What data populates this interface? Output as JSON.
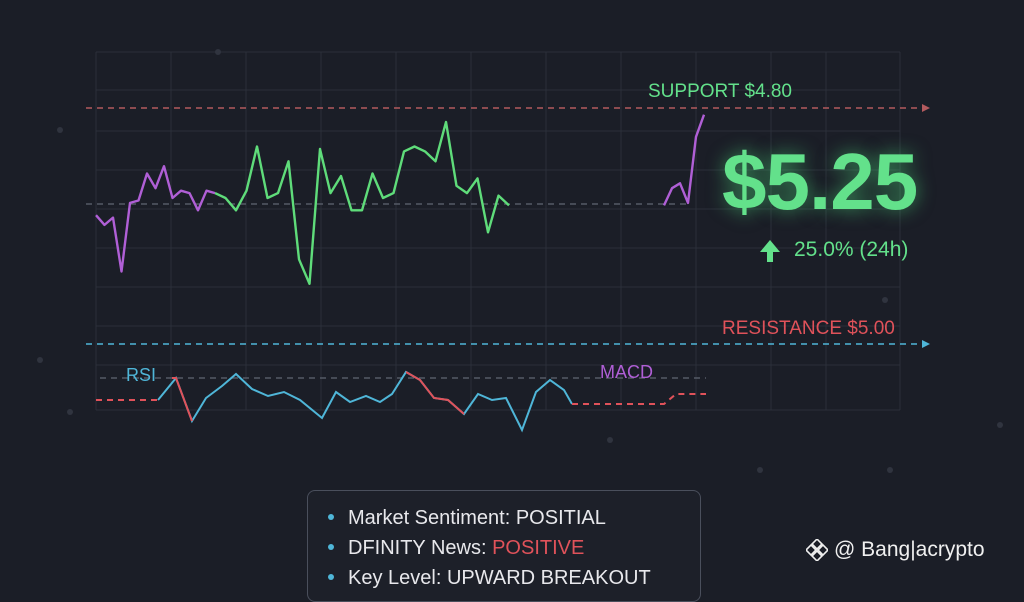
{
  "chart_data": {
    "type": "line",
    "price_series": [
      {
        "color": "#b05fd6",
        "values": [
          0.53,
          0.49,
          0.52,
          0.3,
          0.58,
          0.59,
          0.7,
          0.64,
          0.73,
          0.6,
          0.63,
          0.62,
          0.55,
          0.63,
          0.62
        ]
      },
      {
        "color": "#5fdc7a",
        "values": [
          0.62,
          0.6,
          0.55,
          0.63,
          0.81,
          0.6,
          0.62,
          0.75,
          0.35,
          0.25,
          0.8,
          0.62,
          0.69,
          0.55,
          0.55,
          0.7,
          0.6,
          0.62,
          0.79,
          0.81,
          0.79,
          0.75,
          0.91,
          0.65,
          0.62,
          0.68,
          0.46,
          0.61,
          0.57
        ]
      },
      {
        "color": "#b05fd6",
        "values": [
          0.57,
          0.64,
          0.66,
          0.58,
          0.85,
          0.94
        ]
      }
    ],
    "annotations": {
      "support": {
        "label": "SUPPORT $4.80",
        "color": "#63e18b"
      },
      "resistance": {
        "label": "RESISTANCE $5.00",
        "color": "#e0525a"
      }
    },
    "price": "$5.25",
    "change": "25.0% (24h)",
    "rsi_label": "RSI",
    "macd_label": "MACD"
  },
  "info": {
    "row1": "Market Sentiment: POSITIAL",
    "row2_prefix": "DFINITY News: ",
    "row2_value": "POSITIVE",
    "row3": "Key Level: UPWARD BREAKOUT"
  },
  "watermark": "@ Bang|acrypto",
  "colors": {
    "bg": "#1b1e27",
    "grid": "#2b2f3a",
    "green": "#63e18b",
    "purple": "#b05fd6",
    "red": "#e0525a",
    "cyan": "#4fb6d8"
  }
}
